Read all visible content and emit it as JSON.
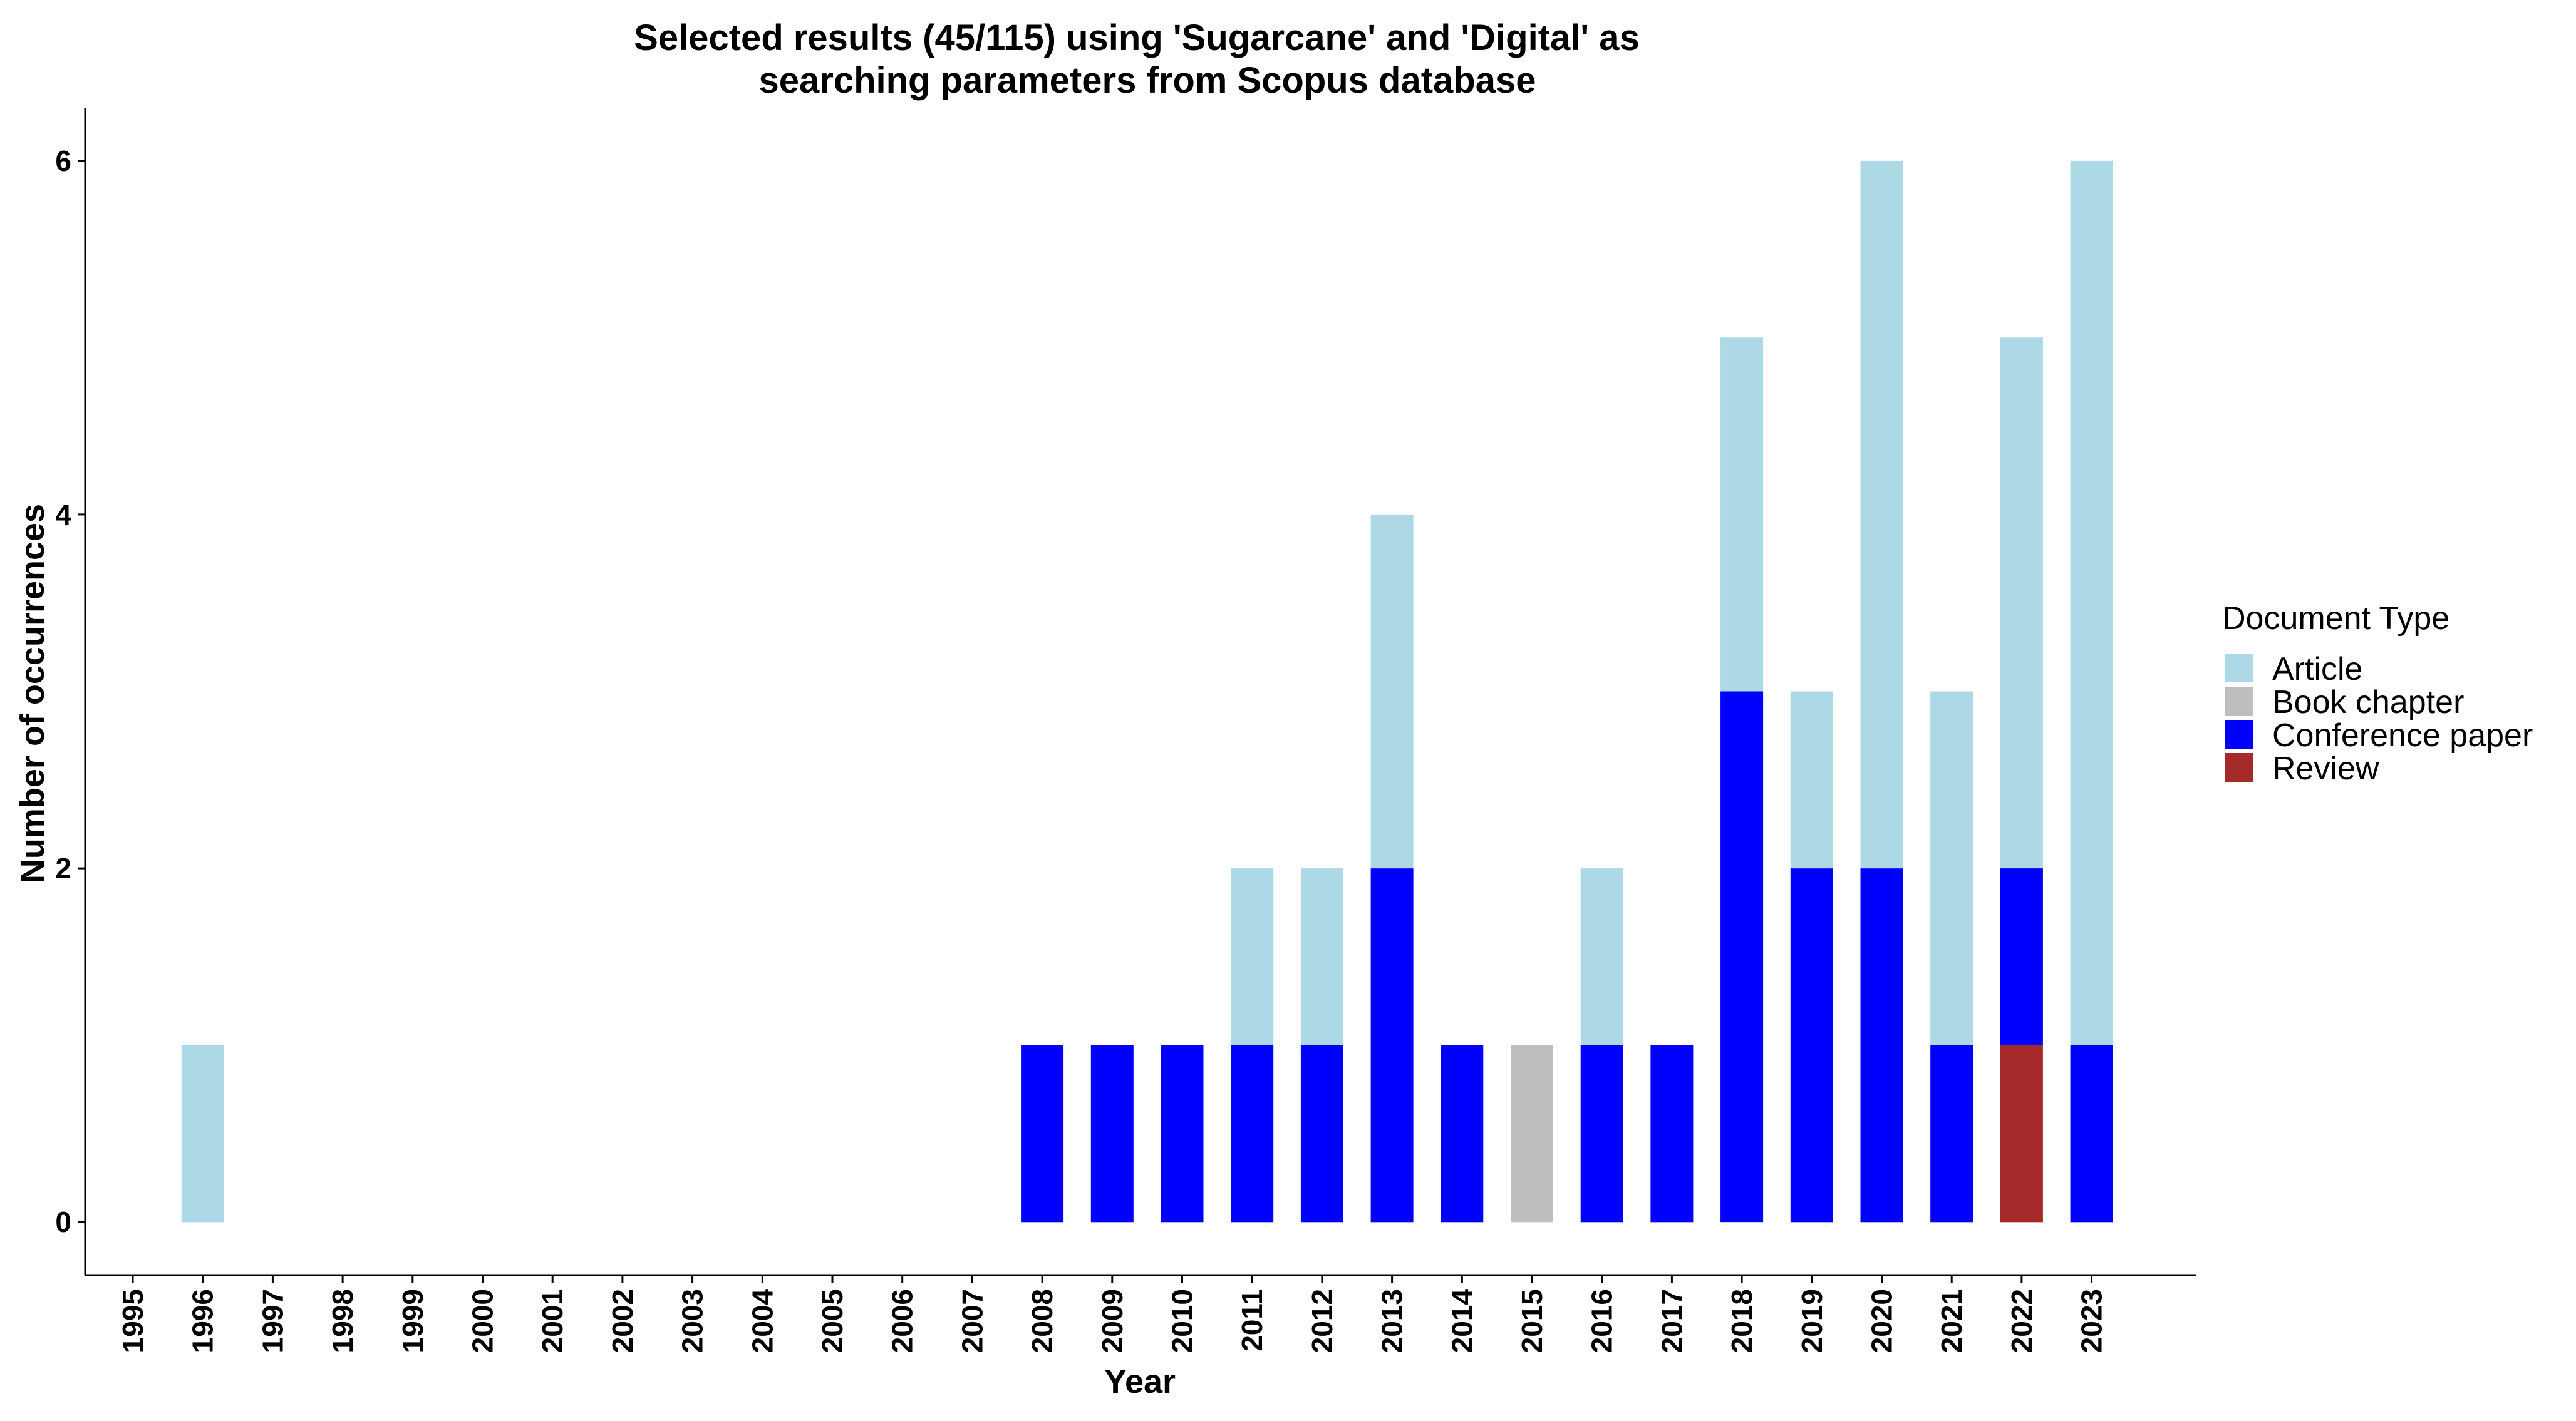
{
  "chart_data": {
    "type": "bar",
    "stacked": true,
    "title_lines": [
      "Selected results (45/115) using 'Sugarcane' and 'Digital' as",
      "searching parameters from Scopus database"
    ],
    "xlabel": "Year",
    "ylabel": "Number of occurrences",
    "categories": [
      "1995",
      "1996",
      "1997",
      "1998",
      "1999",
      "2000",
      "2001",
      "2002",
      "2003",
      "2004",
      "2005",
      "2006",
      "2007",
      "2008",
      "2009",
      "2010",
      "2011",
      "2012",
      "2013",
      "2014",
      "2015",
      "2016",
      "2017",
      "2018",
      "2019",
      "2020",
      "2021",
      "2022",
      "2023"
    ],
    "yticks": [
      0,
      2,
      4,
      6
    ],
    "ylim": [
      -0.3,
      6.3
    ],
    "grid": false,
    "legend_position": "right",
    "legend_title": "Document Type",
    "stack_order_bottom_to_top": [
      "Review",
      "Book chapter",
      "Conference paper",
      "Article"
    ],
    "series": [
      {
        "name": "Article",
        "color": "#add8e6",
        "values": [
          0,
          1,
          0,
          0,
          0,
          0,
          0,
          0,
          0,
          0,
          0,
          0,
          0,
          0,
          0,
          0,
          1,
          1,
          2,
          0,
          0,
          1,
          0,
          2,
          1,
          4,
          2,
          3,
          5
        ]
      },
      {
        "name": "Book chapter",
        "color": "#bebebe",
        "values": [
          0,
          0,
          0,
          0,
          0,
          0,
          0,
          0,
          0,
          0,
          0,
          0,
          0,
          0,
          0,
          0,
          0,
          0,
          0,
          0,
          1,
          0,
          0,
          0,
          0,
          0,
          0,
          0,
          0
        ]
      },
      {
        "name": "Conference paper",
        "color": "#0000ff",
        "values": [
          0,
          0,
          0,
          0,
          0,
          0,
          0,
          0,
          0,
          0,
          0,
          0,
          0,
          1,
          1,
          1,
          1,
          1,
          2,
          1,
          0,
          1,
          1,
          3,
          2,
          2,
          1,
          1,
          1
        ]
      },
      {
        "name": "Review",
        "color": "#a52a2a",
        "values": [
          0,
          0,
          0,
          0,
          0,
          0,
          0,
          0,
          0,
          0,
          0,
          0,
          0,
          0,
          0,
          0,
          0,
          0,
          0,
          0,
          0,
          0,
          0,
          0,
          0,
          0,
          0,
          1,
          0
        ]
      }
    ]
  }
}
